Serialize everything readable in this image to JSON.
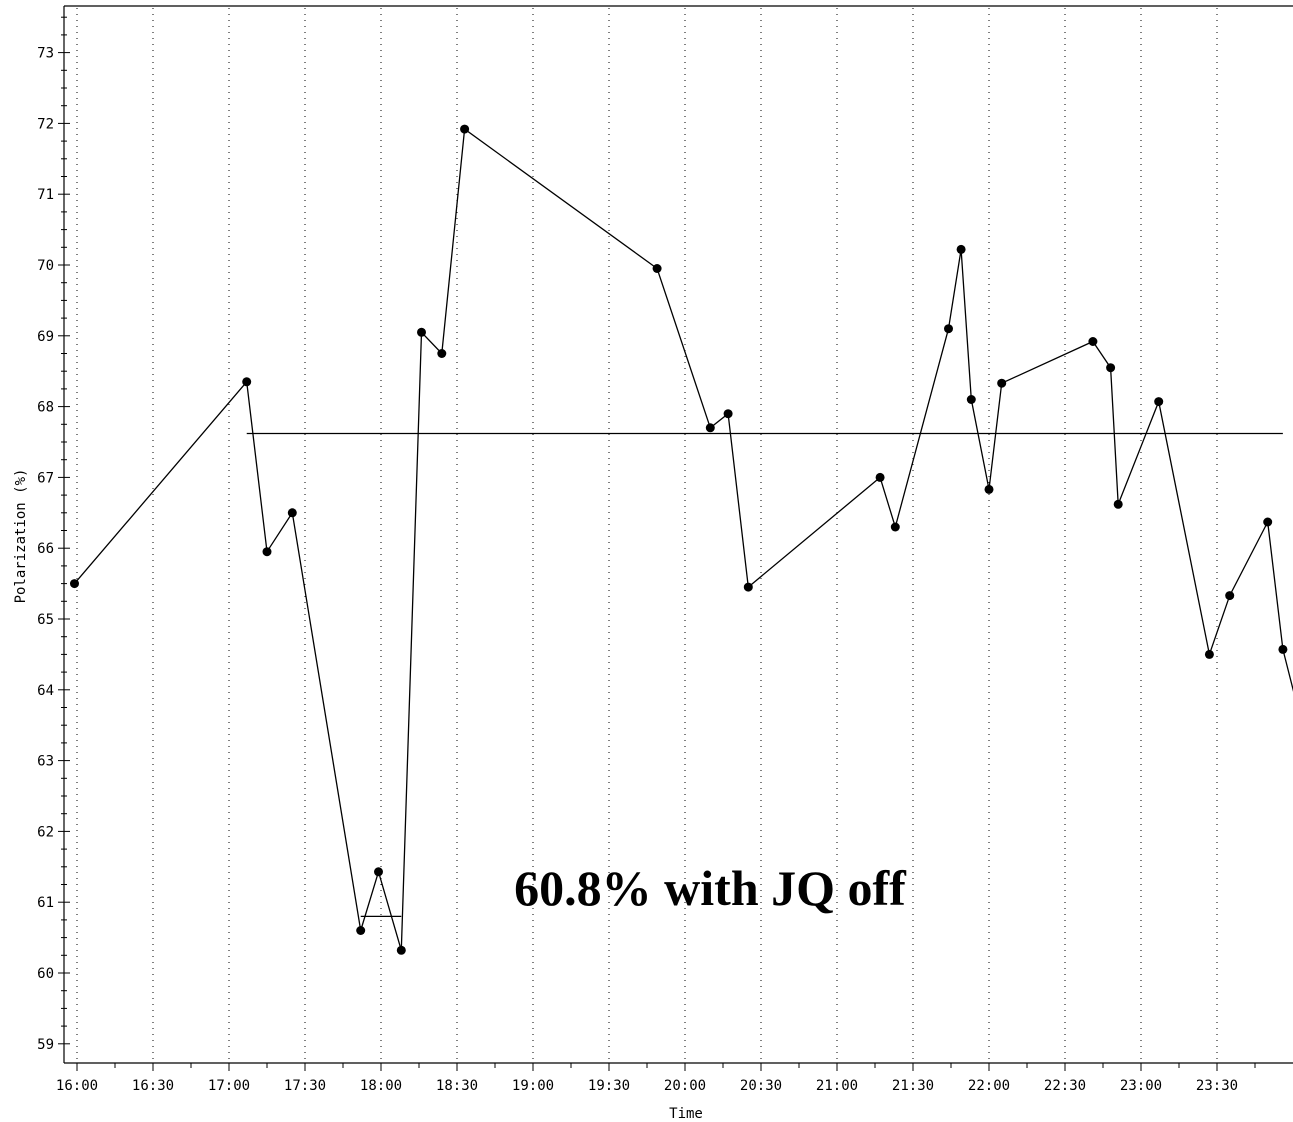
{
  "chart_data": {
    "type": "line",
    "xlabel": "Time",
    "ylabel": "Polarization (%)",
    "x_tick_labels": [
      "16:00",
      "16:30",
      "17:00",
      "17:30",
      "18:00",
      "18:30",
      "19:00",
      "19:30",
      "20:00",
      "20:30",
      "21:00",
      "21:30",
      "22:00",
      "22:30",
      "23:00",
      "23:30"
    ],
    "y_tick_labels": [
      "59",
      "60",
      "61",
      "62",
      "63",
      "64",
      "65",
      "66",
      "67",
      "68",
      "69",
      "70",
      "71",
      "72",
      "73"
    ],
    "xlim_minutes": [
      0,
      480
    ],
    "ylim": [
      58.7,
      73.6
    ],
    "grid": "vertical-dotted",
    "annotation": "60.8% with JQ off",
    "series": [
      {
        "x": [
          "15:59",
          "17:07",
          "17:15",
          "17:25",
          "17:52",
          "17:59",
          "18:08",
          "18:16",
          "18:24",
          "18:33",
          "19:49",
          "20:10",
          "20:17",
          "20:25",
          "21:17",
          "21:23",
          "21:44",
          "21:49",
          "21:53",
          "22:00",
          "22:05",
          "22:41",
          "22:48",
          "22:51",
          "23:07",
          "23:27",
          "23:35",
          "23:50",
          "23:56",
          "24:05"
        ],
        "values": [
          65.5,
          68.35,
          65.95,
          66.5,
          60.6,
          61.43,
          60.32,
          69.05,
          68.75,
          71.92,
          69.95,
          67.7,
          67.9,
          65.45,
          67.0,
          66.3,
          69.1,
          70.22,
          68.1,
          66.83,
          68.33,
          68.92,
          68.55,
          66.62,
          68.07,
          64.5,
          65.33,
          66.37,
          64.57,
          63.3
        ]
      }
    ],
    "reference_lines": [
      {
        "value": 67.62,
        "from": "17:07",
        "to": "23:56"
      },
      {
        "value": 60.8,
        "from": "17:52",
        "to": "18:08"
      }
    ]
  }
}
